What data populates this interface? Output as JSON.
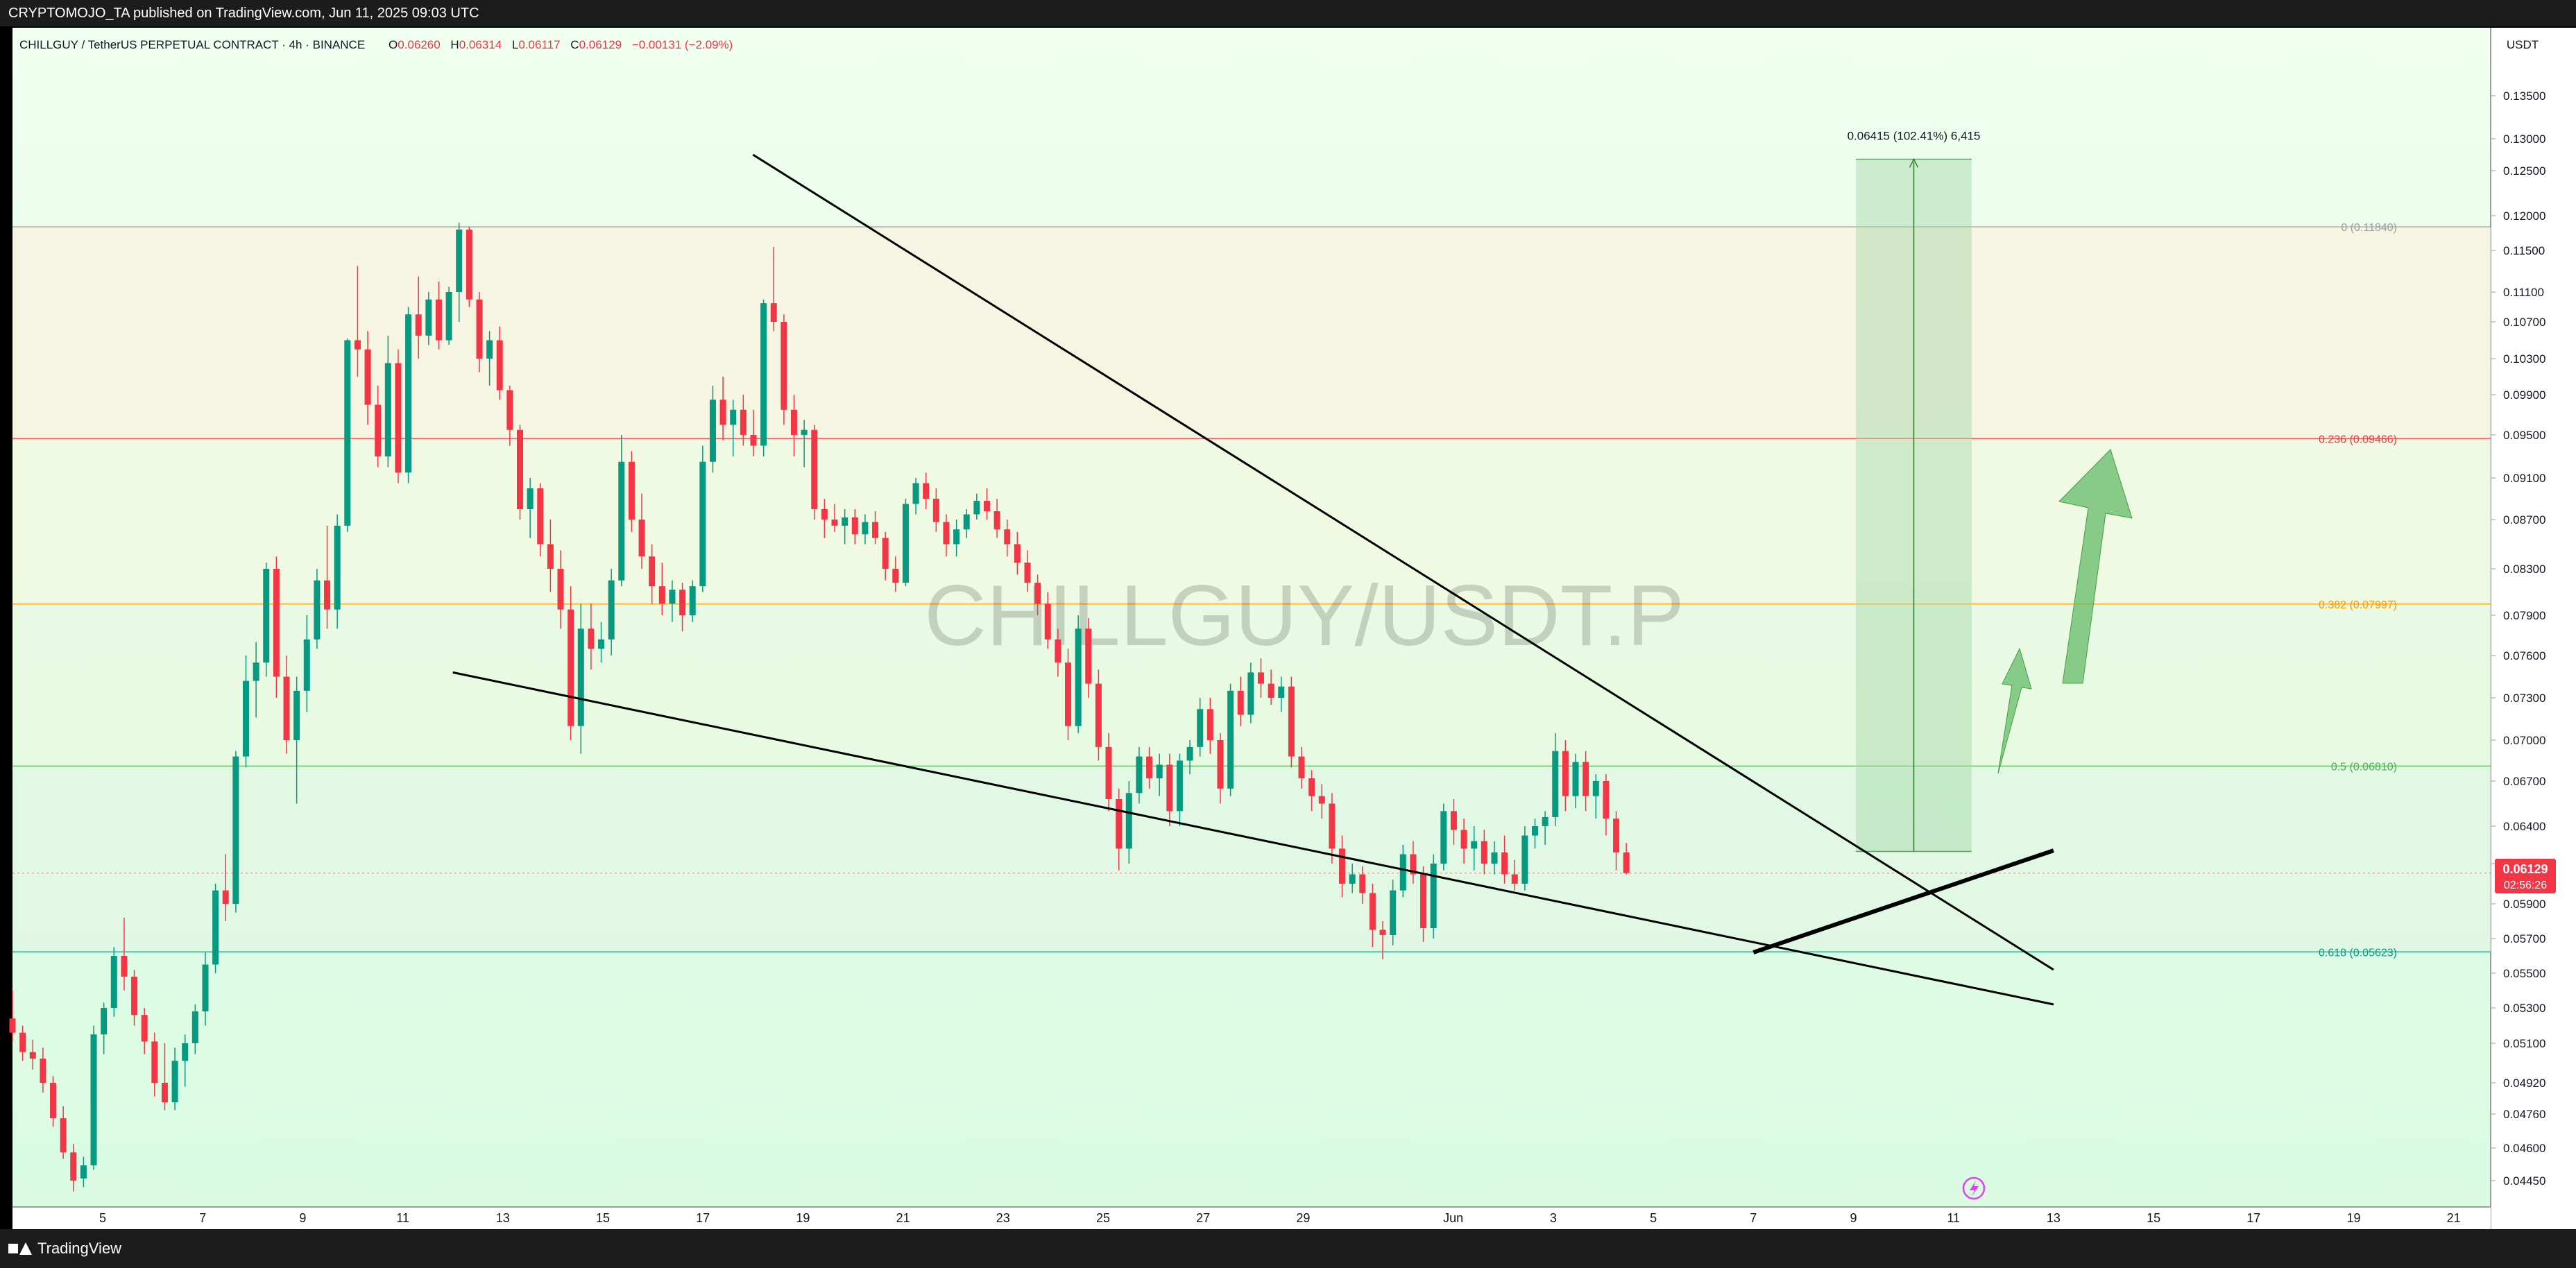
{
  "header": {
    "published": "CRYPTOMOJO_TA published on TradingView.com, Jun 11, 2025 09:03 UTC"
  },
  "symbol_line": {
    "symbol": "CHILLGUY / TetherUS PERPETUAL CONTRACT · 4h · BINANCE",
    "o_label": "O",
    "o_value": "0.06260",
    "h_label": "H",
    "h_value": "0.06314",
    "l_label": "L",
    "l_value": "0.06117",
    "c_label": "C",
    "c_value": "0.06129",
    "change": "−0.00131 (−2.09%)"
  },
  "watermark": "CHILLGUY/USDT.P",
  "footer": {
    "brand": "TradingView"
  },
  "colors": {
    "background": "#e6ffe6",
    "bull": "#089981",
    "bear": "#f23645",
    "fib_0": "#9e9e9e",
    "fib_0236": "#f23645",
    "fib_0382": "#ff9800",
    "fib_05": "#4caf50",
    "fib_0618": "#089981",
    "price_tag": "#f23645",
    "projection_box": "#a5d6a7",
    "arrow": "#66bb6a"
  },
  "chart_data": {
    "type": "candlestick",
    "title": "CHILLGUY / TetherUS PERPETUAL CONTRACT · 4h · BINANCE",
    "y_unit": "USDT",
    "y_ticks": [
      "0.13500",
      "0.13000",
      "0.12500",
      "0.12000",
      "0.11500",
      "0.11100",
      "0.10700",
      "0.10300",
      "0.09900",
      "0.09500",
      "0.09100",
      "0.08700",
      "0.08300",
      "0.07900",
      "0.07600",
      "0.07300",
      "0.07000",
      "0.06700",
      "0.06400",
      "0.06200",
      "0.05900",
      "0.05700",
      "0.05500",
      "0.05300",
      "0.05100",
      "0.04920",
      "0.04760",
      "0.04600",
      "0.04450"
    ],
    "x_ticks": [
      "5",
      "7",
      "9",
      "11",
      "13",
      "15",
      "17",
      "19",
      "21",
      "23",
      "25",
      "27",
      "29",
      "Jun",
      "3",
      "5",
      "7",
      "9",
      "11",
      "13",
      "15",
      "17",
      "19",
      "21"
    ],
    "current_price": "0.06129",
    "countdown": "02:56:26",
    "fib_levels": [
      {
        "label": "0 (0.11840)",
        "value": 0.1184
      },
      {
        "label": "0.236 (0.09466)",
        "value": 0.09466
      },
      {
        "label": "0.382 (0.07997)",
        "value": 0.07997
      },
      {
        "label": "0.5 (0.06810)",
        "value": 0.0681
      },
      {
        "label": "0.618 (0.05623)",
        "value": 0.05623
      }
    ],
    "measure": {
      "label": "0.06415 (102.41%) 6,415",
      "from": 0.06265,
      "to": 0.1268
    },
    "trendlines": [
      {
        "name": "upper",
        "from": [
          "May 18",
          0.1275
        ],
        "to": [
          "Jun 12",
          0.0552
        ]
      },
      {
        "name": "lower",
        "from": [
          "May 12",
          0.0748
        ],
        "to": [
          "Jun 12",
          0.0532
        ]
      },
      {
        "name": "support",
        "from": [
          "Jun 6",
          0.0562
        ],
        "to": [
          "Jun 12",
          0.0627
        ]
      }
    ],
    "candles": [
      {
        "o": 0.0524,
        "h": 0.054,
        "l": 0.0511,
        "c": 0.0516
      },
      {
        "o": 0.0516,
        "h": 0.052,
        "l": 0.0502,
        "c": 0.0506
      },
      {
        "o": 0.0506,
        "h": 0.0512,
        "l": 0.0498,
        "c": 0.0503
      },
      {
        "o": 0.0503,
        "h": 0.0508,
        "l": 0.0487,
        "c": 0.0492
      },
      {
        "o": 0.0492,
        "h": 0.0495,
        "l": 0.047,
        "c": 0.0474
      },
      {
        "o": 0.0474,
        "h": 0.048,
        "l": 0.0455,
        "c": 0.0458
      },
      {
        "o": 0.0458,
        "h": 0.0462,
        "l": 0.044,
        "c": 0.0445
      },
      {
        "o": 0.0446,
        "h": 0.0456,
        "l": 0.0442,
        "c": 0.0452
      },
      {
        "o": 0.0452,
        "h": 0.052,
        "l": 0.045,
        "c": 0.0515
      },
      {
        "o": 0.0515,
        "h": 0.0533,
        "l": 0.0505,
        "c": 0.053
      },
      {
        "o": 0.053,
        "h": 0.0565,
        "l": 0.0525,
        "c": 0.056
      },
      {
        "o": 0.056,
        "h": 0.0582,
        "l": 0.054,
        "c": 0.0548
      },
      {
        "o": 0.0548,
        "h": 0.0552,
        "l": 0.052,
        "c": 0.0526
      },
      {
        "o": 0.0526,
        "h": 0.053,
        "l": 0.0505,
        "c": 0.0511
      },
      {
        "o": 0.0511,
        "h": 0.0516,
        "l": 0.0485,
        "c": 0.0492
      },
      {
        "o": 0.0492,
        "h": 0.051,
        "l": 0.0478,
        "c": 0.0482
      },
      {
        "o": 0.0482,
        "h": 0.0508,
        "l": 0.0478,
        "c": 0.0502
      },
      {
        "o": 0.0502,
        "h": 0.0515,
        "l": 0.049,
        "c": 0.051
      },
      {
        "o": 0.051,
        "h": 0.0532,
        "l": 0.0505,
        "c": 0.0528
      },
      {
        "o": 0.0528,
        "h": 0.0562,
        "l": 0.052,
        "c": 0.0555
      },
      {
        "o": 0.0555,
        "h": 0.0605,
        "l": 0.055,
        "c": 0.06
      },
      {
        "o": 0.06,
        "h": 0.0625,
        "l": 0.058,
        "c": 0.059
      },
      {
        "o": 0.059,
        "h": 0.0692,
        "l": 0.0585,
        "c": 0.0688
      },
      {
        "o": 0.0688,
        "h": 0.076,
        "l": 0.068,
        "c": 0.0742
      },
      {
        "o": 0.0742,
        "h": 0.077,
        "l": 0.0716,
        "c": 0.0755
      },
      {
        "o": 0.0755,
        "h": 0.0835,
        "l": 0.0745,
        "c": 0.083
      },
      {
        "o": 0.083,
        "h": 0.084,
        "l": 0.073,
        "c": 0.0745
      },
      {
        "o": 0.0745,
        "h": 0.076,
        "l": 0.069,
        "c": 0.07
      },
      {
        "o": 0.07,
        "h": 0.0745,
        "l": 0.0655,
        "c": 0.0735
      },
      {
        "o": 0.0735,
        "h": 0.079,
        "l": 0.072,
        "c": 0.0772
      },
      {
        "o": 0.0772,
        "h": 0.083,
        "l": 0.0765,
        "c": 0.082
      },
      {
        "o": 0.082,
        "h": 0.0865,
        "l": 0.078,
        "c": 0.0795
      },
      {
        "o": 0.0795,
        "h": 0.0875,
        "l": 0.078,
        "c": 0.0865
      },
      {
        "o": 0.0865,
        "h": 0.1052,
        "l": 0.086,
        "c": 0.105
      },
      {
        "o": 0.105,
        "h": 0.1135,
        "l": 0.101,
        "c": 0.104
      },
      {
        "o": 0.104,
        "h": 0.106,
        "l": 0.096,
        "c": 0.098
      },
      {
        "o": 0.098,
        "h": 0.1,
        "l": 0.092,
        "c": 0.093
      },
      {
        "o": 0.093,
        "h": 0.1055,
        "l": 0.092,
        "c": 0.1025
      },
      {
        "o": 0.1025,
        "h": 0.104,
        "l": 0.0905,
        "c": 0.0915
      },
      {
        "o": 0.0915,
        "h": 0.109,
        "l": 0.0905,
        "c": 0.108
      },
      {
        "o": 0.108,
        "h": 0.1125,
        "l": 0.103,
        "c": 0.1055
      },
      {
        "o": 0.1055,
        "h": 0.111,
        "l": 0.1045,
        "c": 0.11
      },
      {
        "o": 0.11,
        "h": 0.112,
        "l": 0.104,
        "c": 0.105
      },
      {
        "o": 0.105,
        "h": 0.1115,
        "l": 0.1045,
        "c": 0.111
      },
      {
        "o": 0.111,
        "h": 0.119,
        "l": 0.107,
        "c": 0.118
      },
      {
        "o": 0.118,
        "h": 0.1184,
        "l": 0.109,
        "c": 0.11
      },
      {
        "o": 0.11,
        "h": 0.111,
        "l": 0.1015,
        "c": 0.103
      },
      {
        "o": 0.103,
        "h": 0.106,
        "l": 0.1,
        "c": 0.105
      },
      {
        "o": 0.105,
        "h": 0.1065,
        "l": 0.0985,
        "c": 0.0995
      },
      {
        "o": 0.0995,
        "h": 0.1,
        "l": 0.094,
        "c": 0.0955
      },
      {
        "o": 0.0955,
        "h": 0.096,
        "l": 0.087,
        "c": 0.088
      },
      {
        "o": 0.088,
        "h": 0.091,
        "l": 0.0855,
        "c": 0.09
      },
      {
        "o": 0.09,
        "h": 0.0905,
        "l": 0.084,
        "c": 0.085
      },
      {
        "o": 0.085,
        "h": 0.087,
        "l": 0.081,
        "c": 0.083
      },
      {
        "o": 0.083,
        "h": 0.0845,
        "l": 0.078,
        "c": 0.0795
      },
      {
        "o": 0.0795,
        "h": 0.0815,
        "l": 0.07,
        "c": 0.071
      },
      {
        "o": 0.071,
        "h": 0.08,
        "l": 0.069,
        "c": 0.078
      },
      {
        "o": 0.078,
        "h": 0.08,
        "l": 0.075,
        "c": 0.0765
      },
      {
        "o": 0.0765,
        "h": 0.0785,
        "l": 0.0755,
        "c": 0.0772
      },
      {
        "o": 0.0772,
        "h": 0.083,
        "l": 0.076,
        "c": 0.082
      },
      {
        "o": 0.082,
        "h": 0.095,
        "l": 0.0815,
        "c": 0.0925
      },
      {
        "o": 0.0925,
        "h": 0.0935,
        "l": 0.086,
        "c": 0.087
      },
      {
        "o": 0.087,
        "h": 0.0895,
        "l": 0.083,
        "c": 0.084
      },
      {
        "o": 0.084,
        "h": 0.085,
        "l": 0.08,
        "c": 0.0815
      },
      {
        "o": 0.0815,
        "h": 0.0835,
        "l": 0.079,
        "c": 0.08
      },
      {
        "o": 0.08,
        "h": 0.082,
        "l": 0.0785,
        "c": 0.0812
      },
      {
        "o": 0.0812,
        "h": 0.0818,
        "l": 0.0778,
        "c": 0.079
      },
      {
        "o": 0.079,
        "h": 0.082,
        "l": 0.0785,
        "c": 0.0815
      },
      {
        "o": 0.0815,
        "h": 0.094,
        "l": 0.081,
        "c": 0.0925
      },
      {
        "o": 0.0925,
        "h": 0.1,
        "l": 0.0915,
        "c": 0.0985
      },
      {
        "o": 0.0985,
        "h": 0.101,
        "l": 0.0945,
        "c": 0.096
      },
      {
        "o": 0.096,
        "h": 0.0985,
        "l": 0.093,
        "c": 0.0975
      },
      {
        "o": 0.0975,
        "h": 0.099,
        "l": 0.094,
        "c": 0.095
      },
      {
        "o": 0.095,
        "h": 0.0975,
        "l": 0.093,
        "c": 0.094
      },
      {
        "o": 0.094,
        "h": 0.11,
        "l": 0.093,
        "c": 0.1095
      },
      {
        "o": 0.1095,
        "h": 0.1155,
        "l": 0.106,
        "c": 0.107
      },
      {
        "o": 0.107,
        "h": 0.108,
        "l": 0.096,
        "c": 0.0975
      },
      {
        "o": 0.0975,
        "h": 0.099,
        "l": 0.093,
        "c": 0.095
      },
      {
        "o": 0.095,
        "h": 0.0965,
        "l": 0.092,
        "c": 0.0955
      },
      {
        "o": 0.0955,
        "h": 0.096,
        "l": 0.087,
        "c": 0.088
      },
      {
        "o": 0.088,
        "h": 0.089,
        "l": 0.0855,
        "c": 0.087
      },
      {
        "o": 0.087,
        "h": 0.0885,
        "l": 0.086,
        "c": 0.0865
      },
      {
        "o": 0.0865,
        "h": 0.088,
        "l": 0.085,
        "c": 0.0872
      },
      {
        "o": 0.0872,
        "h": 0.088,
        "l": 0.085,
        "c": 0.0858
      },
      {
        "o": 0.0858,
        "h": 0.0875,
        "l": 0.085,
        "c": 0.0868
      },
      {
        "o": 0.0868,
        "h": 0.0878,
        "l": 0.085,
        "c": 0.0855
      },
      {
        "o": 0.0855,
        "h": 0.086,
        "l": 0.082,
        "c": 0.083
      },
      {
        "o": 0.083,
        "h": 0.084,
        "l": 0.081,
        "c": 0.0818
      },
      {
        "o": 0.0818,
        "h": 0.089,
        "l": 0.0815,
        "c": 0.0885
      },
      {
        "o": 0.0885,
        "h": 0.091,
        "l": 0.0875,
        "c": 0.0905
      },
      {
        "o": 0.0905,
        "h": 0.0915,
        "l": 0.088,
        "c": 0.089
      },
      {
        "o": 0.089,
        "h": 0.09,
        "l": 0.086,
        "c": 0.0868
      },
      {
        "o": 0.0868,
        "h": 0.0875,
        "l": 0.084,
        "c": 0.085
      },
      {
        "o": 0.085,
        "h": 0.087,
        "l": 0.084,
        "c": 0.0862
      },
      {
        "o": 0.0862,
        "h": 0.088,
        "l": 0.0855,
        "c": 0.0875
      },
      {
        "o": 0.0875,
        "h": 0.0895,
        "l": 0.087,
        "c": 0.0888
      },
      {
        "o": 0.0888,
        "h": 0.09,
        "l": 0.087,
        "c": 0.0878
      },
      {
        "o": 0.0878,
        "h": 0.089,
        "l": 0.0855,
        "c": 0.0862
      },
      {
        "o": 0.0862,
        "h": 0.087,
        "l": 0.084,
        "c": 0.085
      },
      {
        "o": 0.085,
        "h": 0.086,
        "l": 0.0825,
        "c": 0.0835
      },
      {
        "o": 0.0835,
        "h": 0.0845,
        "l": 0.081,
        "c": 0.0818
      },
      {
        "o": 0.0818,
        "h": 0.0825,
        "l": 0.079,
        "c": 0.08
      },
      {
        "o": 0.08,
        "h": 0.081,
        "l": 0.0765,
        "c": 0.0772
      },
      {
        "o": 0.0772,
        "h": 0.078,
        "l": 0.0745,
        "c": 0.0755
      },
      {
        "o": 0.0755,
        "h": 0.0765,
        "l": 0.07,
        "c": 0.071
      },
      {
        "o": 0.071,
        "h": 0.079,
        "l": 0.0705,
        "c": 0.078
      },
      {
        "o": 0.078,
        "h": 0.0788,
        "l": 0.073,
        "c": 0.074
      },
      {
        "o": 0.074,
        "h": 0.075,
        "l": 0.0685,
        "c": 0.0695
      },
      {
        "o": 0.0695,
        "h": 0.0705,
        "l": 0.065,
        "c": 0.0658
      },
      {
        "o": 0.0658,
        "h": 0.0665,
        "l": 0.0615,
        "c": 0.0628
      },
      {
        "o": 0.0628,
        "h": 0.067,
        "l": 0.062,
        "c": 0.0662
      },
      {
        "o": 0.0662,
        "h": 0.0695,
        "l": 0.0655,
        "c": 0.0688
      },
      {
        "o": 0.0688,
        "h": 0.0695,
        "l": 0.0665,
        "c": 0.0672
      },
      {
        "o": 0.0672,
        "h": 0.069,
        "l": 0.066,
        "c": 0.0682
      },
      {
        "o": 0.0682,
        "h": 0.069,
        "l": 0.064,
        "c": 0.065
      },
      {
        "o": 0.065,
        "h": 0.069,
        "l": 0.064,
        "c": 0.0685
      },
      {
        "o": 0.0685,
        "h": 0.07,
        "l": 0.0675,
        "c": 0.0695
      },
      {
        "o": 0.0695,
        "h": 0.073,
        "l": 0.0688,
        "c": 0.0722
      },
      {
        "o": 0.0722,
        "h": 0.073,
        "l": 0.069,
        "c": 0.07
      },
      {
        "o": 0.07,
        "h": 0.0705,
        "l": 0.0655,
        "c": 0.0665
      },
      {
        "o": 0.0665,
        "h": 0.074,
        "l": 0.066,
        "c": 0.0735
      },
      {
        "o": 0.0735,
        "h": 0.0745,
        "l": 0.071,
        "c": 0.0718
      },
      {
        "o": 0.0718,
        "h": 0.0755,
        "l": 0.0712,
        "c": 0.0748
      },
      {
        "o": 0.0748,
        "h": 0.0758,
        "l": 0.073,
        "c": 0.074
      },
      {
        "o": 0.074,
        "h": 0.075,
        "l": 0.0725,
        "c": 0.073
      },
      {
        "o": 0.073,
        "h": 0.0745,
        "l": 0.072,
        "c": 0.0738
      },
      {
        "o": 0.0738,
        "h": 0.0745,
        "l": 0.068,
        "c": 0.0688
      },
      {
        "o": 0.0688,
        "h": 0.0695,
        "l": 0.0665,
        "c": 0.0672
      },
      {
        "o": 0.0672,
        "h": 0.0678,
        "l": 0.065,
        "c": 0.066
      },
      {
        "o": 0.066,
        "h": 0.0668,
        "l": 0.0645,
        "c": 0.0655
      },
      {
        "o": 0.0655,
        "h": 0.0662,
        "l": 0.062,
        "c": 0.0628
      },
      {
        "o": 0.0628,
        "h": 0.0635,
        "l": 0.0595,
        "c": 0.0605
      },
      {
        "o": 0.0605,
        "h": 0.062,
        "l": 0.0598,
        "c": 0.0612
      },
      {
        "o": 0.0612,
        "h": 0.0618,
        "l": 0.059,
        "c": 0.0598
      },
      {
        "o": 0.0598,
        "h": 0.0605,
        "l": 0.0565,
        "c": 0.0575
      },
      {
        "o": 0.0575,
        "h": 0.058,
        "l": 0.0558,
        "c": 0.0572
      },
      {
        "o": 0.0572,
        "h": 0.0608,
        "l": 0.0566,
        "c": 0.06
      },
      {
        "o": 0.06,
        "h": 0.063,
        "l": 0.0595,
        "c": 0.0625
      },
      {
        "o": 0.0625,
        "h": 0.0632,
        "l": 0.0605,
        "c": 0.0612
      },
      {
        "o": 0.0612,
        "h": 0.0618,
        "l": 0.0568,
        "c": 0.0576
      },
      {
        "o": 0.0576,
        "h": 0.0625,
        "l": 0.057,
        "c": 0.062
      },
      {
        "o": 0.062,
        "h": 0.0655,
        "l": 0.0615,
        "c": 0.065
      },
      {
        "o": 0.065,
        "h": 0.0658,
        "l": 0.063,
        "c": 0.0638
      },
      {
        "o": 0.0638,
        "h": 0.0645,
        "l": 0.062,
        "c": 0.0628
      },
      {
        "o": 0.0628,
        "h": 0.064,
        "l": 0.0615,
        "c": 0.0632
      },
      {
        "o": 0.0632,
        "h": 0.0638,
        "l": 0.0612,
        "c": 0.062
      },
      {
        "o": 0.062,
        "h": 0.0632,
        "l": 0.0612,
        "c": 0.0626
      },
      {
        "o": 0.0626,
        "h": 0.0635,
        "l": 0.0605,
        "c": 0.0612
      },
      {
        "o": 0.0612,
        "h": 0.0622,
        "l": 0.06,
        "c": 0.0605
      },
      {
        "o": 0.0605,
        "h": 0.064,
        "l": 0.06,
        "c": 0.0635
      },
      {
        "o": 0.0635,
        "h": 0.0645,
        "l": 0.0628,
        "c": 0.064
      },
      {
        "o": 0.064,
        "h": 0.065,
        "l": 0.063,
        "c": 0.0646
      },
      {
        "o": 0.0646,
        "h": 0.0705,
        "l": 0.064,
        "c": 0.0692
      },
      {
        "o": 0.0692,
        "h": 0.07,
        "l": 0.065,
        "c": 0.066
      },
      {
        "o": 0.066,
        "h": 0.069,
        "l": 0.0652,
        "c": 0.0684
      },
      {
        "o": 0.0684,
        "h": 0.0692,
        "l": 0.065,
        "c": 0.066
      },
      {
        "o": 0.066,
        "h": 0.0675,
        "l": 0.0645,
        "c": 0.067
      },
      {
        "o": 0.067,
        "h": 0.0675,
        "l": 0.0635,
        "c": 0.0645
      },
      {
        "o": 0.0645,
        "h": 0.065,
        "l": 0.0615,
        "c": 0.0626
      },
      {
        "o": 0.0626,
        "h": 0.0631,
        "l": 0.0612,
        "c": 0.0613
      }
    ]
  }
}
